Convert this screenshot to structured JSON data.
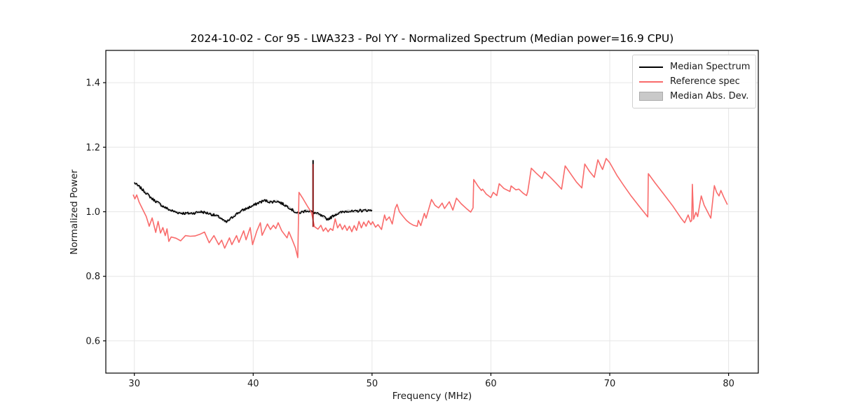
{
  "chart_data": {
    "type": "line",
    "title": "2024-10-02 - Cor 95 - LWA323 - Pol YY - Normalized Spectrum (Median power=16.9 CPU)",
    "xlabel": "Frequency (MHz)",
    "ylabel": "Normalized Power",
    "xlim": [
      27.6,
      82.5
    ],
    "ylim": [
      0.5,
      1.5
    ],
    "grid": true,
    "xticks": [
      {
        "v": 30,
        "label": "30"
      },
      {
        "v": 40,
        "label": "40"
      },
      {
        "v": 50,
        "label": "50"
      },
      {
        "v": 60,
        "label": "60"
      },
      {
        "v": 70,
        "label": "70"
      },
      {
        "v": 80,
        "label": "80"
      }
    ],
    "yticks": [
      {
        "v": 0.6,
        "label": "0.6"
      },
      {
        "v": 0.8,
        "label": "0.8"
      },
      {
        "v": 1.0,
        "label": "1.0"
      },
      {
        "v": 1.2,
        "label": "1.2"
      },
      {
        "v": 1.4,
        "label": "1.4"
      }
    ],
    "colors": {
      "background": "#ffffff",
      "grid": "#e6e6e6",
      "spine": "#000000",
      "text": "#1a1a1a",
      "median_line": "#000000",
      "reference_line": "#f96b6b",
      "overlap_spike": "#9b1b1b",
      "mad_band": "#c9c9c9"
    },
    "legend": {
      "position": "upper-right",
      "entries": [
        {
          "label": "Median Spectrum",
          "swatch": "line",
          "color": "#000000"
        },
        {
          "label": "Reference spec",
          "swatch": "line",
          "color": "#f96b6b"
        },
        {
          "label": "Median Abs. Dev.",
          "swatch": "patch",
          "color": "#c9c9c9",
          "edge_color": "#ababab"
        }
      ]
    },
    "series": [
      {
        "name": "Median Abs. Dev.",
        "kind": "band",
        "half_width": 0.004,
        "color": "#c9c9c9"
      },
      {
        "name": "Median Spectrum",
        "kind": "line_uniform",
        "color": "#000000",
        "width": 1.5,
        "x_start": 30.0,
        "x_step": 0.25,
        "noise": 0.0045,
        "upsample": 4,
        "values": [
          1.09,
          1.082,
          1.075,
          1.066,
          1.058,
          1.049,
          1.04,
          1.034,
          1.028,
          1.021,
          1.015,
          1.01,
          1.005,
          1.002,
          0.999,
          0.997,
          0.996,
          0.995,
          0.995,
          0.995,
          0.996,
          0.998,
          1.0,
          0.999,
          0.997,
          0.995,
          0.992,
          0.989,
          0.986,
          0.981,
          0.972,
          0.968,
          0.975,
          0.983,
          0.991,
          0.997,
          1.002,
          1.007,
          1.011,
          1.015,
          1.019,
          1.024,
          1.029,
          1.032,
          1.035,
          1.032,
          1.03,
          1.032,
          1.033,
          1.029,
          1.024,
          1.019,
          1.014,
          1.007,
          1.0,
          0.995,
          0.998,
          1.001,
          1.004,
          1.001,
          0.999,
          0.996,
          0.992,
          0.987,
          0.982,
          0.977,
          0.981,
          0.988,
          0.993,
          0.996,
          0.999,
          1.001,
          1.003,
          1.001,
          1.0,
          1.002,
          1.004,
          1.003,
          1.005,
          1.004,
          1.005
        ]
      },
      {
        "name": "Median Spectrum RFI spike",
        "kind": "line_points",
        "color": "#000000",
        "width": 2.0,
        "points": [
          [
            45.04,
            0.997
          ],
          [
            45.04,
            1.16
          ]
        ]
      },
      {
        "name": "Reference spec",
        "kind": "line_points",
        "color": "#f96b6b",
        "width": 1.6,
        "points": [
          [
            29.9,
            1.053
          ],
          [
            30.05,
            1.04
          ],
          [
            30.2,
            1.052
          ],
          [
            30.4,
            1.03
          ],
          [
            30.6,
            1.015
          ],
          [
            30.8,
            1.0
          ],
          [
            31.0,
            0.985
          ],
          [
            31.1,
            0.973
          ],
          [
            31.25,
            0.955
          ],
          [
            31.5,
            0.981
          ],
          [
            31.8,
            0.936
          ],
          [
            32.0,
            0.97
          ],
          [
            32.2,
            0.934
          ],
          [
            32.4,
            0.951
          ],
          [
            32.6,
            0.926
          ],
          [
            32.75,
            0.947
          ],
          [
            32.9,
            0.908
          ],
          [
            33.1,
            0.922
          ],
          [
            33.5,
            0.918
          ],
          [
            33.9,
            0.91
          ],
          [
            34.3,
            0.926
          ],
          [
            34.7,
            0.924
          ],
          [
            35.1,
            0.925
          ],
          [
            35.5,
            0.93
          ],
          [
            35.9,
            0.937
          ],
          [
            36.3,
            0.904
          ],
          [
            36.7,
            0.926
          ],
          [
            37.1,
            0.898
          ],
          [
            37.35,
            0.912
          ],
          [
            37.6,
            0.887
          ],
          [
            38.0,
            0.919
          ],
          [
            38.2,
            0.898
          ],
          [
            38.6,
            0.926
          ],
          [
            38.8,
            0.905
          ],
          [
            39.2,
            0.941
          ],
          [
            39.4,
            0.913
          ],
          [
            39.75,
            0.951
          ],
          [
            39.95,
            0.898
          ],
          [
            40.3,
            0.94
          ],
          [
            40.6,
            0.966
          ],
          [
            40.75,
            0.927
          ],
          [
            41.2,
            0.962
          ],
          [
            41.45,
            0.945
          ],
          [
            41.7,
            0.958
          ],
          [
            41.9,
            0.948
          ],
          [
            42.1,
            0.966
          ],
          [
            42.4,
            0.941
          ],
          [
            42.85,
            0.919
          ],
          [
            43.0,
            0.938
          ],
          [
            43.3,
            0.912
          ],
          [
            43.55,
            0.888
          ],
          [
            43.75,
            0.858
          ],
          [
            43.85,
            1.06
          ],
          [
            44.2,
            1.04
          ],
          [
            44.6,
            1.015
          ],
          [
            44.9,
            0.998
          ],
          [
            45.15,
            0.954
          ],
          [
            45.45,
            0.946
          ],
          [
            45.7,
            0.958
          ],
          [
            45.9,
            0.94
          ],
          [
            46.1,
            0.95
          ],
          [
            46.3,
            0.938
          ],
          [
            46.5,
            0.948
          ],
          [
            46.7,
            0.942
          ],
          [
            46.9,
            0.978
          ],
          [
            47.1,
            0.95
          ],
          [
            47.3,
            0.962
          ],
          [
            47.5,
            0.945
          ],
          [
            47.7,
            0.958
          ],
          [
            47.9,
            0.942
          ],
          [
            48.1,
            0.955
          ],
          [
            48.3,
            0.938
          ],
          [
            48.5,
            0.957
          ],
          [
            48.7,
            0.942
          ],
          [
            48.9,
            0.97
          ],
          [
            49.1,
            0.95
          ],
          [
            49.3,
            0.968
          ],
          [
            49.5,
            0.955
          ],
          [
            49.7,
            0.972
          ],
          [
            49.9,
            0.96
          ],
          [
            50.05,
            0.969
          ],
          [
            50.3,
            0.952
          ],
          [
            50.5,
            0.96
          ],
          [
            50.8,
            0.945
          ],
          [
            51.05,
            0.99
          ],
          [
            51.2,
            0.973
          ],
          [
            51.45,
            0.984
          ],
          [
            51.7,
            0.962
          ],
          [
            51.95,
            1.01
          ],
          [
            52.1,
            1.023
          ],
          [
            52.3,
            1.0
          ],
          [
            52.6,
            0.986
          ],
          [
            52.9,
            0.973
          ],
          [
            53.2,
            0.964
          ],
          [
            53.5,
            0.958
          ],
          [
            53.8,
            0.955
          ],
          [
            53.9,
            0.973
          ],
          [
            54.1,
            0.957
          ],
          [
            54.4,
            0.995
          ],
          [
            54.55,
            0.98
          ],
          [
            55.0,
            1.038
          ],
          [
            55.3,
            1.02
          ],
          [
            55.6,
            1.012
          ],
          [
            55.9,
            1.027
          ],
          [
            56.1,
            1.01
          ],
          [
            56.5,
            1.031
          ],
          [
            56.8,
            1.005
          ],
          [
            57.1,
            1.042
          ],
          [
            57.5,
            1.025
          ],
          [
            58.0,
            1.008
          ],
          [
            58.3,
            0.999
          ],
          [
            58.5,
            1.012
          ],
          [
            58.55,
            1.1
          ],
          [
            58.9,
            1.08
          ],
          [
            59.2,
            1.066
          ],
          [
            59.3,
            1.07
          ],
          [
            59.6,
            1.055
          ],
          [
            60.0,
            1.044
          ],
          [
            60.2,
            1.06
          ],
          [
            60.5,
            1.05
          ],
          [
            60.7,
            1.087
          ],
          [
            61.1,
            1.072
          ],
          [
            61.6,
            1.063
          ],
          [
            61.7,
            1.08
          ],
          [
            62.1,
            1.068
          ],
          [
            62.35,
            1.07
          ],
          [
            62.7,
            1.058
          ],
          [
            63.0,
            1.05
          ],
          [
            63.1,
            1.062
          ],
          [
            63.4,
            1.135
          ],
          [
            63.8,
            1.12
          ],
          [
            64.3,
            1.103
          ],
          [
            64.5,
            1.124
          ],
          [
            65.0,
            1.107
          ],
          [
            65.5,
            1.088
          ],
          [
            65.95,
            1.07
          ],
          [
            66.25,
            1.142
          ],
          [
            66.7,
            1.118
          ],
          [
            67.2,
            1.092
          ],
          [
            67.65,
            1.074
          ],
          [
            67.9,
            1.148
          ],
          [
            68.3,
            1.125
          ],
          [
            68.7,
            1.107
          ],
          [
            69.0,
            1.161
          ],
          [
            69.2,
            1.145
          ],
          [
            69.4,
            1.131
          ],
          [
            69.7,
            1.165
          ],
          [
            70.0,
            1.152
          ],
          [
            70.6,
            1.113
          ],
          [
            71.2,
            1.08
          ],
          [
            71.8,
            1.049
          ],
          [
            72.5,
            1.016
          ],
          [
            73.2,
            0.984
          ],
          [
            73.25,
            1.118
          ],
          [
            73.8,
            1.09
          ],
          [
            74.6,
            1.052
          ],
          [
            75.3,
            1.018
          ],
          [
            76.0,
            0.98
          ],
          [
            76.3,
            0.966
          ],
          [
            76.6,
            0.99
          ],
          [
            76.8,
            0.969
          ],
          [
            76.9,
            0.973
          ],
          [
            76.95,
            1.085
          ],
          [
            77.05,
            0.977
          ],
          [
            77.25,
            0.998
          ],
          [
            77.4,
            0.985
          ],
          [
            77.7,
            1.049
          ],
          [
            77.95,
            1.02
          ],
          [
            78.2,
            1.002
          ],
          [
            78.5,
            0.98
          ],
          [
            78.8,
            1.081
          ],
          [
            79.0,
            1.06
          ],
          [
            79.2,
            1.049
          ],
          [
            79.35,
            1.066
          ],
          [
            79.6,
            1.045
          ],
          [
            79.9,
            1.022
          ]
        ]
      },
      {
        "name": "Reference spec overlap spike",
        "kind": "line_points",
        "color": "#9b1b1b",
        "width": 1.8,
        "points": [
          [
            45.04,
            0.953
          ],
          [
            45.04,
            1.148
          ]
        ]
      }
    ]
  }
}
